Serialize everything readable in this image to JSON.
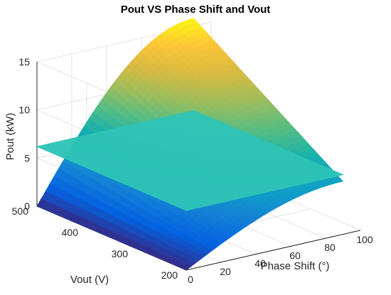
{
  "chart_data": {
    "type": "surface",
    "title": "Pout VS Phase Shift and Vout",
    "xlabel": "Phase Shift (°)",
    "ylabel": "Vout (V)",
    "zlabel": "Pout (kW)",
    "xlim": [
      0,
      100
    ],
    "ylim": [
      200,
      500
    ],
    "zlim": [
      0,
      15
    ],
    "xticks": [
      0,
      20,
      40,
      60,
      80,
      100
    ],
    "yticks": [
      200,
      300,
      400,
      500
    ],
    "zticks": [
      0,
      5,
      10,
      15
    ],
    "grid": true,
    "colormap": "parula",
    "series": [
      {
        "kind": "surface",
        "x_range": [
          0,
          90
        ],
        "y_range": [
          200,
          500
        ],
        "corner_values": {
          "phase0_vout200": 0,
          "phase0_vout500": 0,
          "phase90_vout200": 5.5,
          "phase90_vout500": 15.8
        },
        "shape": "Pout grows with phase shift (sin-like) and linearly with Vout"
      },
      {
        "kind": "plane",
        "x_range": [
          0,
          90
        ],
        "y_range": [
          200,
          500
        ],
        "z": 6.2,
        "color": "#2EC4B6"
      }
    ]
  }
}
